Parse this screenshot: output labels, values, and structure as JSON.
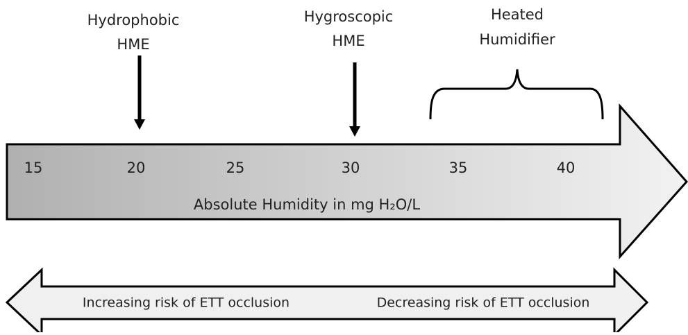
{
  "labels": {
    "hydrophobic": [
      "Hydrophobic",
      "HME"
    ],
    "hygroscopic": [
      "Hygroscopic",
      "HME"
    ],
    "heated": [
      "Heated",
      "Humidifier"
    ]
  },
  "scale": [
    "15",
    "20",
    "25",
    "30",
    "35",
    "40"
  ],
  "axis_label": "Absolute Humidity in mg H₂O/L",
  "risk": {
    "increasing": "Increasing risk of ETT occlusion",
    "decreasing": "Decreasing risk of ETT occlusion"
  }
}
